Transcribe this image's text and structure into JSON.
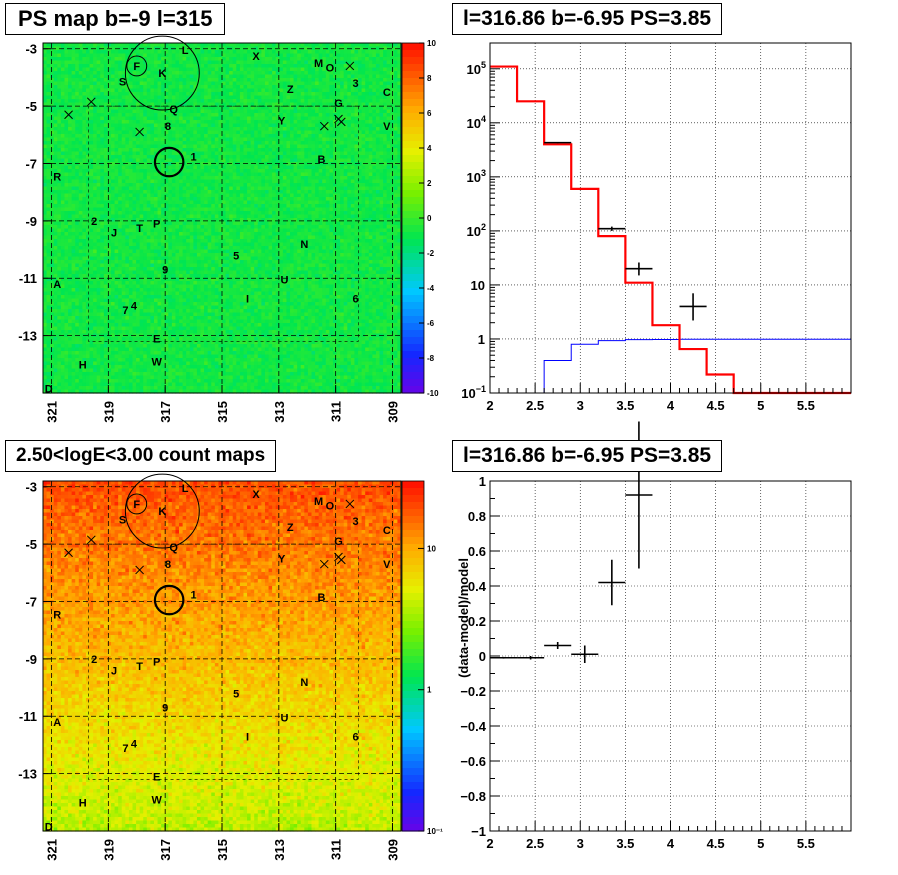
{
  "panels": {
    "ps_map": {
      "title": "PS map b=-9 l=315",
      "y_ticks": [
        "-3",
        "-5",
        "-7",
        "-9",
        "-11",
        "-13"
      ],
      "x_ticks": [
        "321",
        "319",
        "317",
        "315",
        "313",
        "311",
        "309"
      ],
      "colorbar_ticks": [
        "10",
        "8",
        "6",
        "4",
        "2",
        "0",
        "-2",
        "-4",
        "-6",
        "-8",
        "-10"
      ]
    },
    "count_map": {
      "title": "2.50<logE<3.00 count maps",
      "y_ticks": [
        "-3",
        "-5",
        "-7",
        "-9",
        "-11",
        "-13"
      ],
      "x_ticks": [
        "321",
        "319",
        "317",
        "315",
        "313",
        "311",
        "309"
      ],
      "colorbar_ticks": [
        "10",
        "1",
        "10⁻¹"
      ]
    },
    "spectrum": {
      "title": "l=316.86 b=-6.95 PS=3.85"
    },
    "residual": {
      "title": "l=316.86 b=-6.95 PS=3.85"
    }
  },
  "sources": [
    {
      "label": "L",
      "l": 316.3,
      "b": -3.05
    },
    {
      "label": "X",
      "l": 313.8,
      "b": -3.25
    },
    {
      "label": "F",
      "l": 318.0,
      "b": -3.6
    },
    {
      "label": "K",
      "l": 317.1,
      "b": -3.85
    },
    {
      "label": "M",
      "l": 311.6,
      "b": -3.5
    },
    {
      "label": "O",
      "l": 311.2,
      "b": -3.65
    },
    {
      "label": "S",
      "l": 318.5,
      "b": -4.15
    },
    {
      "label": "3",
      "l": 310.3,
      "b": -4.2
    },
    {
      "label": "Z",
      "l": 312.6,
      "b": -4.4
    },
    {
      "label": "C",
      "l": 309.2,
      "b": -4.5
    },
    {
      "label": "G",
      "l": 310.9,
      "b": -4.9
    },
    {
      "label": "Q",
      "l": 316.7,
      "b": -5.1
    },
    {
      "label": "Y",
      "l": 312.9,
      "b": -5.5
    },
    {
      "label": "8",
      "l": 316.9,
      "b": -5.7
    },
    {
      "label": "V",
      "l": 309.2,
      "b": -5.7
    },
    {
      "label": "1",
      "l": 316.0,
      "b": -6.75
    },
    {
      "label": "B",
      "l": 311.5,
      "b": -6.85
    },
    {
      "label": "R",
      "l": 320.8,
      "b": -7.45
    },
    {
      "label": "2",
      "l": 319.5,
      "b": -9.0
    },
    {
      "label": "J",
      "l": 318.8,
      "b": -9.4
    },
    {
      "label": "T",
      "l": 317.9,
      "b": -9.25
    },
    {
      "label": "P",
      "l": 317.3,
      "b": -9.1
    },
    {
      "label": "N",
      "l": 312.1,
      "b": -9.8
    },
    {
      "label": "5",
      "l": 314.5,
      "b": -10.2
    },
    {
      "label": "9",
      "l": 317.0,
      "b": -10.7
    },
    {
      "label": "U",
      "l": 312.8,
      "b": -11.05
    },
    {
      "label": "A",
      "l": 320.8,
      "b": -11.2
    },
    {
      "label": "I",
      "l": 314.1,
      "b": -11.7
    },
    {
      "label": "6",
      "l": 310.3,
      "b": -11.7
    },
    {
      "label": "7",
      "l": 318.4,
      "b": -12.1
    },
    {
      "label": "4",
      "l": 318.1,
      "b": -11.95
    },
    {
      "label": "E",
      "l": 317.3,
      "b": -13.1
    },
    {
      "label": "H",
      "l": 319.9,
      "b": -14.0
    },
    {
      "label": "W",
      "l": 317.3,
      "b": -13.9
    },
    {
      "label": "D",
      "l": 321.1,
      "b": -14.85
    }
  ],
  "crosses": [
    {
      "l": 320.4,
      "b": -5.3
    },
    {
      "l": 319.6,
      "b": -4.85
    },
    {
      "l": 317.9,
      "b": -5.9
    },
    {
      "l": 310.5,
      "b": -3.6
    },
    {
      "l": 311.4,
      "b": -5.7
    },
    {
      "l": 310.9,
      "b": -5.45
    },
    {
      "l": 310.8,
      "b": -5.55
    }
  ],
  "circles": [
    {
      "l": 317.1,
      "b": -3.85,
      "r_deg": 1.3
    },
    {
      "l": 318.0,
      "b": -3.6,
      "r_deg": 0.35
    },
    {
      "l": 316.86,
      "b": -6.95,
      "r_deg": 0.5
    }
  ],
  "chart_data": [
    {
      "type": "heatmap",
      "title": "PS map b=-9 l=315",
      "xlim": [
        321.3,
        308.7
      ],
      "ylim": [
        -15,
        -2.8
      ],
      "x_ticks": [
        321,
        319,
        317,
        315,
        313,
        311,
        309
      ],
      "y_ticks": [
        -3,
        -5,
        -7,
        -9,
        -11,
        -13
      ],
      "z_range": [
        -10,
        10
      ],
      "grid": true
    },
    {
      "type": "heatmap",
      "title": "2.50<logE<3.00 count maps",
      "xlim": [
        321.3,
        308.7
      ],
      "ylim": [
        -15,
        -2.8
      ],
      "x_ticks": [
        321,
        319,
        317,
        315,
        313,
        311,
        309
      ],
      "y_ticks": [
        -3,
        -5,
        -7,
        -9,
        -11,
        -13
      ],
      "z_scale": "log",
      "z_range": [
        0.1,
        30
      ],
      "grid": true
    },
    {
      "type": "line",
      "title": "l=316.86 b=-6.95 PS=3.85",
      "xlim": [
        2,
        6
      ],
      "ylim": [
        0.1,
        300000
      ],
      "y_scale": "log",
      "x_ticks": [
        2,
        2.5,
        3,
        3.5,
        4,
        4.5,
        5,
        5.5
      ],
      "y_ticks": [
        0.1,
        1,
        10,
        100,
        1000,
        10000,
        100000
      ],
      "grid": true,
      "series": [
        {
          "color": "#ff0000",
          "edges": [
            2,
            2.3,
            2.6,
            2.9,
            3.2,
            3.5,
            3.8,
            4.1,
            4.4,
            4.7,
            5.0,
            5.3,
            5.6,
            6.0
          ],
          "values": [
            110000,
            25000,
            4000,
            600,
            80,
            11,
            1.8,
            0.65,
            0.22,
            0.1,
            0.1,
            0.1,
            0.1
          ]
        },
        {
          "color": "#0000ff",
          "edges": [
            2,
            2.3,
            2.6,
            2.9,
            3.2,
            3.5,
            3.8,
            4.1,
            4.4,
            4.7,
            5.0,
            5.3,
            5.6,
            6.0
          ],
          "values": [
            0.05,
            0.05,
            0.4,
            0.8,
            0.93,
            0.97,
            0.98,
            0.99,
            0.99,
            0.99,
            0.99,
            0.99,
            0.99
          ]
        },
        {
          "color": "#000000",
          "points": [
            {
              "x": 2.75,
              "y": 4300,
              "xerr": 0.15,
              "yerr": [
                4200,
                4400
              ]
            },
            {
              "x": 3.35,
              "y": 110,
              "xerr": 0.15,
              "yerr": [
                100,
                120
              ]
            },
            {
              "x": 3.65,
              "y": 20,
              "xerr": 0.15,
              "yerr": [
                15,
                26
              ]
            },
            {
              "x": 4.25,
              "y": 4,
              "xerr": 0.15,
              "yerr": [
                2.2,
                7
              ]
            }
          ]
        }
      ]
    },
    {
      "type": "scatter",
      "title": "l=316.86 b=-6.95 PS=3.85",
      "ylabel": "(data-model)/model",
      "xlim": [
        2,
        6
      ],
      "ylim": [
        -1,
        1
      ],
      "x_ticks": [
        2,
        2.5,
        3,
        3.5,
        4,
        4.5,
        5,
        5.5
      ],
      "y_ticks": [
        -1,
        -0.8,
        -0.6,
        -0.4,
        -0.2,
        0,
        0.2,
        0.4,
        0.6,
        0.8,
        1
      ],
      "grid": true,
      "points": [
        {
          "x": 2.15,
          "y": -0.01,
          "xerr": 0.15,
          "yerr": 0.005
        },
        {
          "x": 2.45,
          "y": -0.01,
          "xerr": 0.15,
          "yerr": 0.01
        },
        {
          "x": 2.75,
          "y": 0.06,
          "xerr": 0.15,
          "yerr": 0.02
        },
        {
          "x": 3.05,
          "y": 0.01,
          "xerr": 0.15,
          "yerr": 0.05
        },
        {
          "x": 3.35,
          "y": 0.42,
          "xerr": 0.15,
          "yerr": 0.13
        },
        {
          "x": 3.65,
          "y": 0.92,
          "xerr": 0.15,
          "yerr": 0.42
        }
      ]
    }
  ]
}
